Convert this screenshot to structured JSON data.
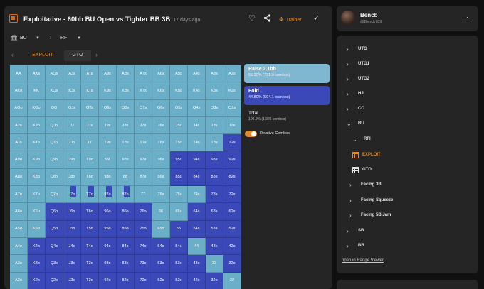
{
  "header": {
    "title": "Exploitative - 60bb BU Open vs Tighter BB 3B",
    "time_ago": "17 days ago",
    "trainer_label": "Trainer"
  },
  "breadcrumb": {
    "position": "BU",
    "action": "RFI"
  },
  "tabs": {
    "exploit": "EXPLOIT",
    "gto": "GTO"
  },
  "grid": {
    "rows": [
      [
        "AA",
        "AKs",
        "AQs",
        "AJs",
        "ATs",
        "A9s",
        "A8s",
        "A7s",
        "A6s",
        "A5s",
        "A4s",
        "A3s",
        "A2s"
      ],
      [
        "AKo",
        "KK",
        "KQs",
        "KJs",
        "KTs",
        "K9s",
        "K8s",
        "K7s",
        "K6s",
        "K5s",
        "K4s",
        "K3s",
        "K2s"
      ],
      [
        "AQo",
        "KQo",
        "QQ",
        "QJs",
        "QTs",
        "Q9s",
        "Q8s",
        "Q7s",
        "Q6s",
        "Q5s",
        "Q4s",
        "Q3s",
        "Q2s"
      ],
      [
        "AJo",
        "KJo",
        "QJo",
        "JJ",
        "JTs",
        "J9s",
        "J8s",
        "J7s",
        "J6s",
        "J5s",
        "J4s",
        "J3s",
        "J2s"
      ],
      [
        "ATo",
        "KTo",
        "QTo",
        "JTo",
        "TT",
        "T9s",
        "T8s",
        "T7s",
        "T6s",
        "T5s",
        "T4s",
        "T3s",
        "T2s"
      ],
      [
        "A9o",
        "K9o",
        "Q9o",
        "J9o",
        "T9o",
        "99",
        "98s",
        "97s",
        "96s",
        "95s",
        "94s",
        "93s",
        "92s"
      ],
      [
        "A8o",
        "K8o",
        "Q8o",
        "J8o",
        "T8o",
        "98o",
        "88",
        "87s",
        "86s",
        "85s",
        "84s",
        "83s",
        "82s"
      ],
      [
        "A7o",
        "K7o",
        "Q7o",
        "J7o",
        "T7o",
        "97o",
        "87o",
        "77",
        "76s",
        "75s",
        "74s",
        "73s",
        "72s"
      ],
      [
        "A6o",
        "K6o",
        "Q6o",
        "J6o",
        "T6o",
        "96o",
        "86o",
        "76o",
        "66",
        "65s",
        "64s",
        "63s",
        "62s"
      ],
      [
        "A5o",
        "K5o",
        "Q5o",
        "J5o",
        "T5o",
        "95o",
        "85o",
        "75o",
        "65o",
        "55",
        "54s",
        "53s",
        "52s"
      ],
      [
        "A4o",
        "K4o",
        "Q4o",
        "J4o",
        "T4o",
        "94o",
        "84o",
        "74o",
        "64o",
        "54o",
        "44",
        "43s",
        "42s"
      ],
      [
        "A3o",
        "K3o",
        "Q3o",
        "J3o",
        "T3o",
        "93o",
        "83o",
        "73o",
        "63o",
        "53o",
        "43o",
        "33",
        "32s"
      ],
      [
        "A2o",
        "K2o",
        "Q2o",
        "J2o",
        "T2o",
        "92o",
        "82o",
        "72o",
        "62o",
        "52o",
        "42o",
        "32o",
        "22"
      ]
    ],
    "actions": [
      "RRRRRRRRRRRRR",
      "RRRRRRRRRRRRR",
      "RRRRRRRRRRRRR",
      "RRRRRRRRRRRRR",
      "RRRRRRRRRRRRF",
      "RRRRRRRRRFFFF",
      "RRRRRRRRRFFFF",
      "RRRMMMMRRRRFF",
      "RRFFFFFFRRFFF",
      "RRFFFFFFRFFFF",
      "RFFFFFFFFFRFF",
      "RFFFFFFFFFFRF",
      "RFFFFFFFFFFFR"
    ],
    "colors": {
      "raise": "#6aaec8",
      "fold": "#3b49b8"
    }
  },
  "legend": {
    "raise_label": "Raise 2.1bb",
    "raise_stats": "55.20% (731.9 combos)",
    "fold_label": "Fold",
    "fold_stats": "44.80% (594.1 combos)",
    "total_label": "Total",
    "total_stats": "100.0% (1,326 combos)",
    "relative_combos_label": "Relative Combos",
    "relative_combos_on": true
  },
  "user": {
    "name": "Bencb",
    "handle": "@Bencb789"
  },
  "tree": {
    "utg": "UTG",
    "utg1": "UTG1",
    "utg2": "UTG2",
    "hj": "HJ",
    "co": "CO",
    "bu": "BU",
    "rfi": "RFI",
    "exploit": "EXPLOIT",
    "gto": "GTO",
    "facing_3b": "Facing 3B",
    "facing_squeeze": "Facing Squeeze",
    "facing_5b_jam": "Facing 5B Jam",
    "sb": "SB",
    "bb": "BB",
    "open_link": "open in Range Viewer"
  },
  "colors": {
    "accent": "#e08a2a",
    "raise": "#7fb6d0",
    "fold": "#3b49b8"
  }
}
